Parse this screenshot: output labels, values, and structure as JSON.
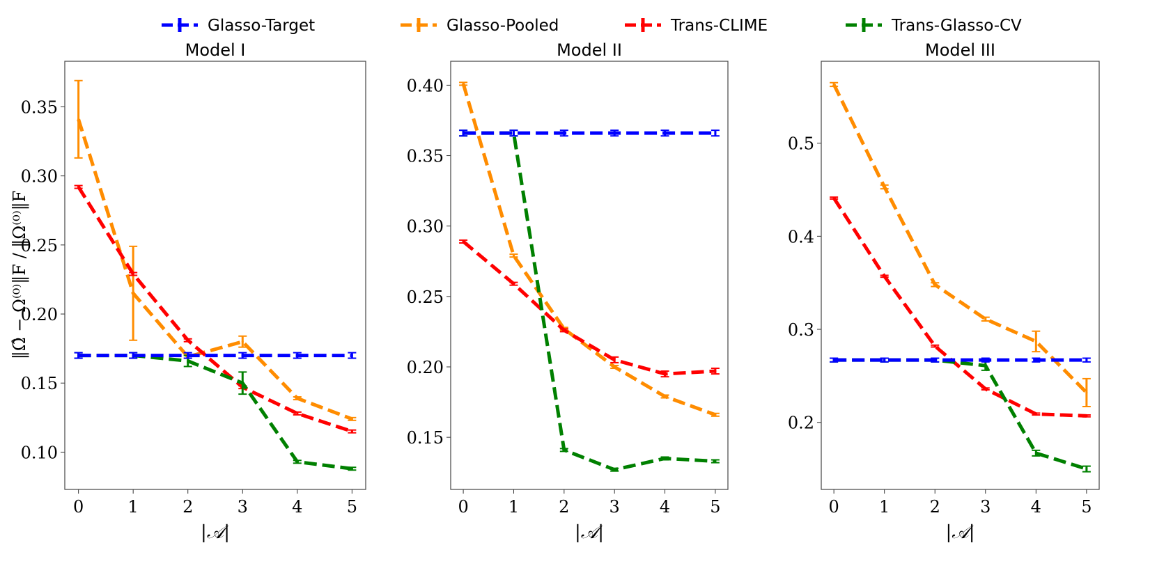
{
  "chart_data": {
    "legend": {
      "placement": "top-center",
      "entries": [
        {
          "name": "Glasso-Target",
          "color": "#0000ff"
        },
        {
          "name": "Glasso-Pooled",
          "color": "#ff8c00"
        },
        {
          "name": "Trans-CLIME",
          "color": "#ff0000"
        },
        {
          "name": "Trans-Glasso-CV",
          "color": "#008000"
        }
      ]
    },
    "shared_ylabel": "‖Ω̂ − Ω⁽⁰⁾‖F / ‖Ω⁽⁰⁾‖F",
    "panels": [
      {
        "type": "line",
        "title": "Model I",
        "xlabel": "|𝒜|",
        "x": [
          0,
          1,
          2,
          3,
          4,
          5
        ],
        "xlim": [
          -0.25,
          5.25
        ],
        "ylim": [
          0.073,
          0.383
        ],
        "yticks": [
          "0.10",
          "0.15",
          "0.20",
          "0.25",
          "0.30",
          "0.35"
        ],
        "ytick_values": [
          0.1,
          0.15,
          0.2,
          0.25,
          0.3,
          0.35
        ],
        "series": [
          {
            "name": "Glasso-Target",
            "values": [
              0.17,
              0.17,
              0.17,
              0.17,
              0.17,
              0.17
            ],
            "errors": [
              0.002,
              0.002,
              0.002,
              0.002,
              0.002,
              0.002
            ]
          },
          {
            "name": "Glasso-Pooled",
            "values": [
              0.341,
              0.215,
              0.169,
              0.18,
              0.139,
              0.124
            ],
            "errors": [
              0.028,
              0.034,
              0.001,
              0.004,
              0.001,
              0.001
            ]
          },
          {
            "name": "Trans-CLIME",
            "values": [
              0.292,
              0.229,
              0.181,
              0.147,
              0.128,
              0.115
            ],
            "errors": [
              0.001,
              0.001,
              0.001,
              0.001,
              0.001,
              0.001
            ]
          },
          {
            "name": "Trans-Glasso-CV",
            "values": [
              0.17,
              0.17,
              0.166,
              0.15,
              0.093,
              0.088
            ],
            "errors": [
              0.002,
              0.002,
              0.004,
              0.008,
              0.001,
              0.001
            ]
          }
        ]
      },
      {
        "type": "line",
        "title": "Model II",
        "xlabel": "|𝒜|",
        "x": [
          0,
          1,
          2,
          3,
          4,
          5
        ],
        "xlim": [
          -0.25,
          5.25
        ],
        "ylim": [
          0.113,
          0.417
        ],
        "yticks": [
          "0.15",
          "0.20",
          "0.25",
          "0.30",
          "0.35",
          "0.40"
        ],
        "ytick_values": [
          0.15,
          0.2,
          0.25,
          0.3,
          0.35,
          0.4
        ],
        "series": [
          {
            "name": "Glasso-Target",
            "values": [
              0.366,
              0.366,
              0.366,
              0.366,
              0.366,
              0.366
            ],
            "errors": [
              0.002,
              0.002,
              0.002,
              0.002,
              0.002,
              0.002
            ]
          },
          {
            "name": "Glasso-Pooled",
            "values": [
              0.401,
              0.279,
              0.227,
              0.2,
              0.179,
              0.166
            ],
            "errors": [
              0.001,
              0.001,
              0.001,
              0.001,
              0.001,
              0.001
            ]
          },
          {
            "name": "Trans-CLIME",
            "values": [
              0.289,
              0.259,
              0.226,
              0.205,
              0.195,
              0.197
            ],
            "errors": [
              0.001,
              0.001,
              0.001,
              0.002,
              0.002,
              0.002
            ]
          },
          {
            "name": "Trans-Glasso-CV",
            "values": [
              0.366,
              0.366,
              0.141,
              0.127,
              0.135,
              0.133
            ],
            "errors": [
              0.002,
              0.002,
              0.001,
              0.001,
              0.001,
              0.001
            ]
          }
        ]
      },
      {
        "type": "line",
        "title": "Model III",
        "xlabel": "|𝒜|",
        "x": [
          0,
          1,
          2,
          3,
          4,
          5
        ],
        "xlim": [
          -0.25,
          5.25
        ],
        "ylim": [
          0.128,
          0.588
        ],
        "yticks": [
          "0.2",
          "0.3",
          "0.4",
          "0.5"
        ],
        "ytick_values": [
          0.2,
          0.3,
          0.4,
          0.5
        ],
        "series": [
          {
            "name": "Glasso-Target",
            "values": [
              0.267,
              0.267,
              0.267,
              0.267,
              0.267,
              0.267
            ],
            "errors": [
              0.002,
              0.002,
              0.002,
              0.002,
              0.002,
              0.002
            ]
          },
          {
            "name": "Glasso-Pooled",
            "values": [
              0.563,
              0.453,
              0.348,
              0.311,
              0.287,
              0.232
            ],
            "errors": [
              0.002,
              0.002,
              0.002,
              0.002,
              0.011,
              0.015
            ]
          },
          {
            "name": "Trans-CLIME",
            "values": [
              0.441,
              0.357,
              0.282,
              0.236,
              0.209,
              0.207
            ],
            "errors": [
              0.001,
              0.001,
              0.001,
              0.001,
              0.001,
              0.001
            ]
          },
          {
            "name": "Trans-Glasso-CV",
            "values": [
              0.267,
              0.267,
              0.267,
              0.261,
              0.167,
              0.15
            ],
            "errors": [
              0.002,
              0.002,
              0.002,
              0.005,
              0.003,
              0.003
            ]
          }
        ]
      }
    ]
  }
}
